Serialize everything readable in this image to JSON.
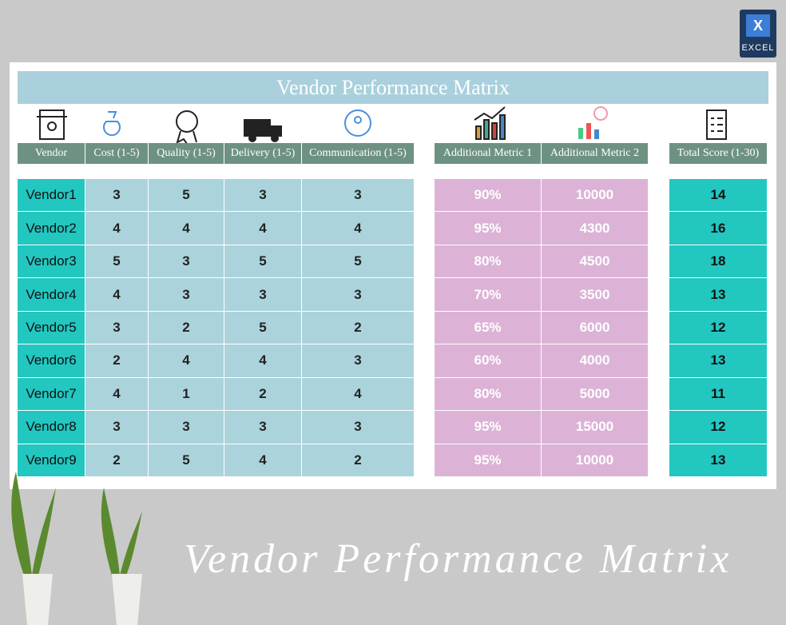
{
  "badge": {
    "letter": "X",
    "label": "EXCEL"
  },
  "title": "Vendor Performance Matrix",
  "table": {
    "headers": [
      "Vendor",
      "Cost (1-5)",
      "Quality (1-5)",
      "Delivery (1-5)",
      "Communication (1-5)",
      "Additional Metric 1",
      "Additional Metric 2",
      "Total Score (1-30)"
    ],
    "rows": [
      [
        "Vendor1",
        3,
        5,
        3,
        3,
        "90%",
        10000,
        14
      ],
      [
        "Vendor2",
        4,
        4,
        4,
        4,
        "95%",
        4300,
        16
      ],
      [
        "Vendor3",
        5,
        3,
        5,
        5,
        "80%",
        4500,
        18
      ],
      [
        "Vendor4",
        4,
        3,
        3,
        3,
        "70%",
        3500,
        13
      ],
      [
        "Vendor5",
        3,
        2,
        5,
        2,
        "65%",
        6000,
        12
      ],
      [
        "Vendor6",
        2,
        4,
        4,
        3,
        "60%",
        4000,
        13
      ],
      [
        "Vendor7",
        4,
        1,
        2,
        4,
        "80%",
        5000,
        11
      ],
      [
        "Vendor8",
        3,
        3,
        3,
        3,
        "95%",
        15000,
        12
      ],
      [
        "Vendor9",
        2,
        5,
        4,
        2,
        "95%",
        10000,
        13
      ]
    ]
  },
  "footer": {
    "title": "Vendor Performance Matrix"
  }
}
